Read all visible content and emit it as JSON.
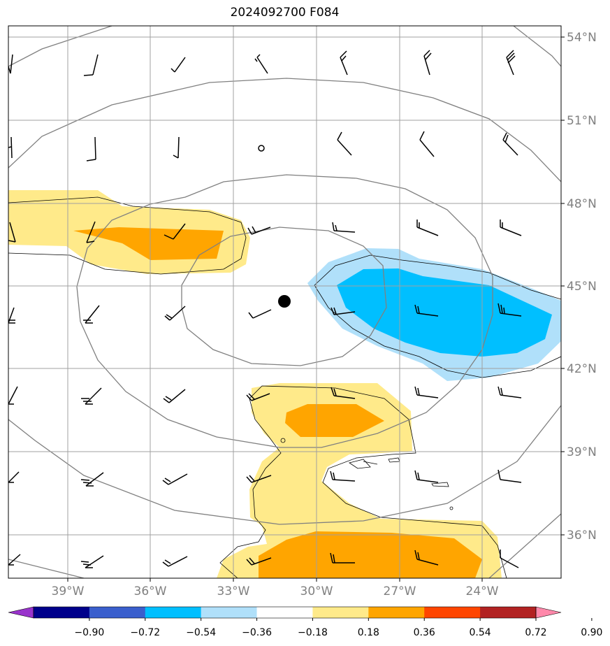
{
  "title": "2024092700 F084",
  "colors": {
    "background": "#ffffff",
    "grid": "#a0a0a0",
    "height_contour": "#808080",
    "shade_contour": "#000000",
    "barb": "#000000",
    "center_dot": "#000000"
  },
  "lat_labels": [
    "54°N",
    "51°N",
    "48°N",
    "45°N",
    "42°N",
    "39°N",
    "36°N"
  ],
  "lon_labels": [
    "39°W",
    "36°W",
    "33°W",
    "30°W",
    "27°W",
    "24°W"
  ],
  "colorbar": {
    "colors": [
      "#9933cc",
      "#00008b",
      "#3a5fcd",
      "#00bfff",
      "#b0e0fa",
      "#ffffff",
      "#ffea8a",
      "#ffa500",
      "#ff4500",
      "#b22222",
      "#ff88aa"
    ],
    "labels": [
      "−0.90",
      "−0.72",
      "−0.54",
      "−0.36",
      "−0.18",
      "0.18",
      "0.36",
      "0.54",
      "0.72",
      "0.90"
    ]
  }
}
